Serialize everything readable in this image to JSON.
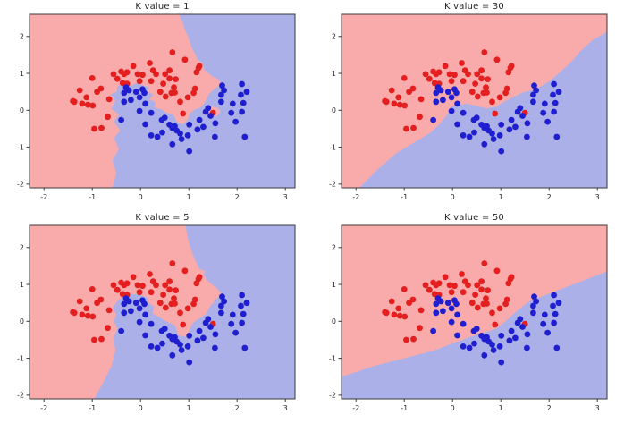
{
  "page": {
    "background": "#ffffff"
  },
  "chart_data": {
    "type": "scatter",
    "description": "KNN decision boundary comparison on two-moons data for four K values",
    "grid": {
      "rows": 2,
      "cols": 2
    },
    "axes": {
      "xlim": [
        -2.3,
        3.2
      ],
      "ylim": [
        -2.1,
        2.6
      ],
      "x_ticks": [
        -2,
        -1,
        0,
        1,
        2,
        3
      ],
      "y_ticks": [
        -2,
        -1,
        0,
        1,
        2
      ],
      "grid_lines": false,
      "frame": true
    },
    "colors": {
      "region_red": "#f9abab",
      "region_blue": "#abb0e8",
      "point_red": "#e41f1f",
      "point_blue": "#1f1fd0",
      "frame": "#3a3a3a",
      "text": "#262626"
    },
    "series": [
      {
        "name": "class-0-red",
        "color_key": "point_red",
        "points": [
          [
            0.66,
            1.57
          ],
          [
            0.92,
            1.37
          ],
          [
            1.22,
            1.2
          ],
          [
            0.19,
            1.28
          ],
          [
            -0.15,
            1.2
          ],
          [
            0.26,
            1.08
          ],
          [
            -0.4,
            1.05
          ],
          [
            -0.56,
            0.98
          ],
          [
            -0.28,
            1.03
          ],
          [
            -0.34,
            0.98
          ],
          [
            -0.06,
            0.98
          ],
          [
            0.04,
            0.96
          ],
          [
            0.32,
            0.98
          ],
          [
            0.51,
            0.98
          ],
          [
            1.16,
            1.03
          ],
          [
            1.2,
            1.15
          ],
          [
            0.6,
            1.08
          ],
          [
            0.6,
            0.86
          ],
          [
            0.73,
            0.84
          ],
          [
            -0.02,
            0.79
          ],
          [
            0.22,
            0.79
          ],
          [
            0.47,
            0.72
          ],
          [
            0.69,
            0.62
          ],
          [
            -1.0,
            0.87
          ],
          [
            -0.48,
            0.85
          ],
          [
            -0.37,
            0.74
          ],
          [
            -0.28,
            0.72
          ],
          [
            0.41,
            0.5
          ],
          [
            0.64,
            0.47
          ],
          [
            -1.26,
            0.54
          ],
          [
            -0.9,
            0.5
          ],
          [
            -0.82,
            0.59
          ],
          [
            -1.12,
            0.35
          ],
          [
            -1.4,
            0.25
          ],
          [
            -0.65,
            0.3
          ],
          [
            0.52,
            0.37
          ],
          [
            1.1,
            0.47
          ],
          [
            1.13,
            0.59
          ],
          [
            0.71,
            0.48
          ],
          [
            0.98,
            0.35
          ],
          [
            0.82,
            0.23
          ],
          [
            -1.37,
            0.23
          ],
          [
            -1.09,
            0.15
          ],
          [
            -0.99,
            0.13
          ],
          [
            -1.21,
            0.18
          ],
          [
            -0.68,
            -0.18
          ],
          [
            -0.96,
            -0.5
          ],
          [
            -0.81,
            -0.48
          ],
          [
            0.88,
            -0.09
          ],
          [
            1.5,
            -0.07
          ]
        ]
      },
      {
        "name": "class-1-blue",
        "color_key": "point_blue",
        "points": [
          [
            -0.3,
            0.62
          ],
          [
            -0.24,
            0.54
          ],
          [
            -0.09,
            0.5
          ],
          [
            0.08,
            0.47
          ],
          [
            -0.34,
            0.47
          ],
          [
            0.04,
            0.57
          ],
          [
            -0.34,
            0.23
          ],
          [
            -0.2,
            0.28
          ],
          [
            -0.02,
            0.35
          ],
          [
            0.1,
            0.18
          ],
          [
            -0.02,
            -0.02
          ],
          [
            0.22,
            -0.07
          ],
          [
            -0.4,
            -0.26
          ],
          [
            0.1,
            -0.38
          ],
          [
            0.44,
            -0.26
          ],
          [
            0.5,
            -0.2
          ],
          [
            0.22,
            -0.68
          ],
          [
            0.35,
            -0.72
          ],
          [
            0.45,
            -0.6
          ],
          [
            0.66,
            -0.48
          ],
          [
            0.75,
            -0.55
          ],
          [
            0.66,
            -0.92
          ],
          [
            0.85,
            -0.78
          ],
          [
            1.01,
            -1.11
          ],
          [
            0.82,
            -0.63
          ],
          [
            0.98,
            -0.68
          ],
          [
            0.71,
            -0.43
          ],
          [
            0.6,
            -0.39
          ],
          [
            1.01,
            -0.39
          ],
          [
            1.18,
            -0.52
          ],
          [
            1.22,
            -0.26
          ],
          [
            1.3,
            -0.45
          ],
          [
            1.35,
            -0.04
          ],
          [
            1.4,
            0.06
          ],
          [
            1.54,
            -0.72
          ],
          [
            1.55,
            -0.35
          ],
          [
            1.67,
            0.23
          ],
          [
            1.69,
            0.67
          ],
          [
            1.73,
            0.54
          ],
          [
            1.67,
            0.42
          ],
          [
            1.88,
            -0.07
          ],
          [
            1.91,
            0.18
          ],
          [
            1.97,
            -0.31
          ],
          [
            2.1,
            -0.04
          ],
          [
            2.13,
            0.2
          ],
          [
            2.08,
            0.42
          ],
          [
            2.1,
            0.71
          ],
          [
            2.16,
            -0.72
          ],
          [
            1.45,
            -0.15
          ],
          [
            2.2,
            0.5
          ]
        ]
      }
    ],
    "plots": [
      {
        "id": "k1",
        "title": "K value = 1",
        "k": 1,
        "blue_region": [
          [
            -0.58,
            -2.1
          ],
          [
            -0.5,
            -1.7
          ],
          [
            -0.58,
            -1.35
          ],
          [
            -0.45,
            -1.05
          ],
          [
            -0.55,
            -0.75
          ],
          [
            -0.42,
            -0.55
          ],
          [
            -0.55,
            -0.3
          ],
          [
            -0.45,
            -0.12
          ],
          [
            -0.6,
            0.05
          ],
          [
            -0.52,
            0.25
          ],
          [
            -0.63,
            0.42
          ],
          [
            -0.5,
            0.5
          ],
          [
            -0.47,
            0.66
          ],
          [
            -0.32,
            0.72
          ],
          [
            -0.2,
            0.66
          ],
          [
            -0.08,
            0.74
          ],
          [
            0.05,
            0.68
          ],
          [
            0.18,
            0.62
          ],
          [
            0.15,
            0.5
          ],
          [
            0.26,
            0.42
          ],
          [
            0.18,
            0.3
          ],
          [
            0.32,
            0.2
          ],
          [
            0.28,
            0.08
          ],
          [
            0.44,
            0.02
          ],
          [
            0.55,
            -0.08
          ],
          [
            0.68,
            -0.12
          ],
          [
            0.75,
            -0.32
          ],
          [
            0.88,
            -0.38
          ],
          [
            0.98,
            -0.25
          ],
          [
            1.02,
            -0.08
          ],
          [
            1.12,
            0.02
          ],
          [
            1.25,
            0.08
          ],
          [
            1.35,
            0.25
          ],
          [
            1.42,
            0.45
          ],
          [
            1.55,
            0.6
          ],
          [
            1.68,
            0.72
          ],
          [
            1.6,
            0.85
          ],
          [
            1.48,
            0.92
          ],
          [
            1.4,
            1.02
          ],
          [
            1.32,
            1.1
          ],
          [
            1.28,
            1.28
          ],
          [
            1.18,
            1.38
          ],
          [
            1.12,
            1.55
          ],
          [
            1.05,
            1.72
          ],
          [
            1.0,
            1.95
          ],
          [
            0.93,
            2.15
          ],
          [
            0.88,
            2.35
          ],
          [
            0.8,
            2.6
          ],
          [
            3.2,
            2.6
          ],
          [
            3.2,
            -2.1
          ]
        ],
        "pink_islands": [
          {
            "cx": 1.48,
            "cy": -0.04,
            "rx": 0.17,
            "ry": 0.14
          }
        ]
      },
      {
        "id": "k30",
        "title": "K value = 30",
        "k": 30,
        "blue_region": [
          [
            -1.93,
            -2.1
          ],
          [
            -1.55,
            -1.6
          ],
          [
            -1.15,
            -1.15
          ],
          [
            -0.7,
            -0.8
          ],
          [
            -0.45,
            -0.6
          ],
          [
            -0.25,
            -0.35
          ],
          [
            -0.1,
            -0.1
          ],
          [
            -0.05,
            0.08
          ],
          [
            0.1,
            0.14
          ],
          [
            0.3,
            0.18
          ],
          [
            0.5,
            0.12
          ],
          [
            0.7,
            0.05
          ],
          [
            0.9,
            0.1
          ],
          [
            1.05,
            0.22
          ],
          [
            1.2,
            0.32
          ],
          [
            1.45,
            0.48
          ],
          [
            1.74,
            0.58
          ],
          [
            2.0,
            0.78
          ],
          [
            2.2,
            1.0
          ],
          [
            2.45,
            1.3
          ],
          [
            2.65,
            1.6
          ],
          [
            2.9,
            1.9
          ],
          [
            3.1,
            2.05
          ],
          [
            3.2,
            2.12
          ],
          [
            3.2,
            -2.1
          ]
        ],
        "pink_islands": []
      },
      {
        "id": "k5",
        "title": "K value = 5",
        "k": 5,
        "blue_region": [
          [
            -0.96,
            -2.1
          ],
          [
            -0.75,
            -1.6
          ],
          [
            -0.6,
            -1.2
          ],
          [
            -0.52,
            -0.8
          ],
          [
            -0.56,
            -0.45
          ],
          [
            -0.48,
            -0.2
          ],
          [
            -0.55,
            0.0
          ],
          [
            -0.5,
            0.2
          ],
          [
            -0.58,
            0.35
          ],
          [
            -0.48,
            0.55
          ],
          [
            -0.35,
            0.68
          ],
          [
            -0.18,
            0.74
          ],
          [
            0.0,
            0.72
          ],
          [
            0.14,
            0.64
          ],
          [
            0.16,
            0.5
          ],
          [
            0.28,
            0.4
          ],
          [
            0.24,
            0.22
          ],
          [
            0.38,
            0.12
          ],
          [
            0.5,
            0.02
          ],
          [
            0.62,
            -0.05
          ],
          [
            0.72,
            -0.12
          ],
          [
            0.78,
            -0.38
          ],
          [
            0.95,
            -0.42
          ],
          [
            1.02,
            -0.2
          ],
          [
            1.1,
            -0.02
          ],
          [
            1.22,
            0.08
          ],
          [
            1.35,
            0.2
          ],
          [
            1.45,
            0.42
          ],
          [
            1.58,
            0.62
          ],
          [
            1.68,
            0.75
          ],
          [
            1.58,
            0.9
          ],
          [
            1.48,
            1.0
          ],
          [
            1.38,
            1.12
          ],
          [
            1.3,
            1.28
          ],
          [
            1.35,
            1.35
          ],
          [
            1.22,
            1.42
          ],
          [
            1.15,
            1.6
          ],
          [
            1.08,
            1.82
          ],
          [
            1.02,
            2.05
          ],
          [
            0.97,
            2.3
          ],
          [
            0.93,
            2.6
          ],
          [
            3.2,
            2.6
          ],
          [
            3.2,
            -2.1
          ]
        ],
        "pink_islands": []
      },
      {
        "id": "k50",
        "title": "K value = 50",
        "k": 50,
        "blue_region": [
          [
            -2.3,
            -1.5
          ],
          [
            -1.6,
            -1.2
          ],
          [
            -1.0,
            -1.0
          ],
          [
            -0.4,
            -0.8
          ],
          [
            0.3,
            -0.45
          ],
          [
            0.9,
            -0.2
          ],
          [
            1.1,
            0.0
          ],
          [
            1.3,
            0.25
          ],
          [
            1.6,
            0.55
          ],
          [
            2.0,
            0.75
          ],
          [
            2.5,
            1.0
          ],
          [
            2.9,
            1.2
          ],
          [
            3.2,
            1.35
          ],
          [
            3.2,
            -2.1
          ],
          [
            -2.3,
            -2.1
          ]
        ],
        "pink_islands": []
      }
    ]
  }
}
